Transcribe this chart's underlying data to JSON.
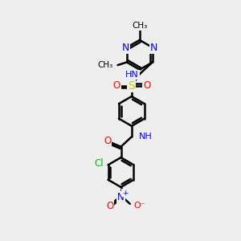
{
  "background_color": "#eeeeee",
  "bond_color": "#000000",
  "bond_width": 1.8,
  "atom_colors": {
    "N": "#0000ff",
    "O": "#ff0000",
    "S": "#cccc00",
    "Cl": "#00bb00",
    "C": "#000000",
    "H": "#666666"
  },
  "font_size": 8.5,
  "fig_size": [
    3.0,
    3.0
  ],
  "dpi": 100,
  "xlim": [
    0,
    10
  ],
  "ylim": [
    0,
    10
  ]
}
